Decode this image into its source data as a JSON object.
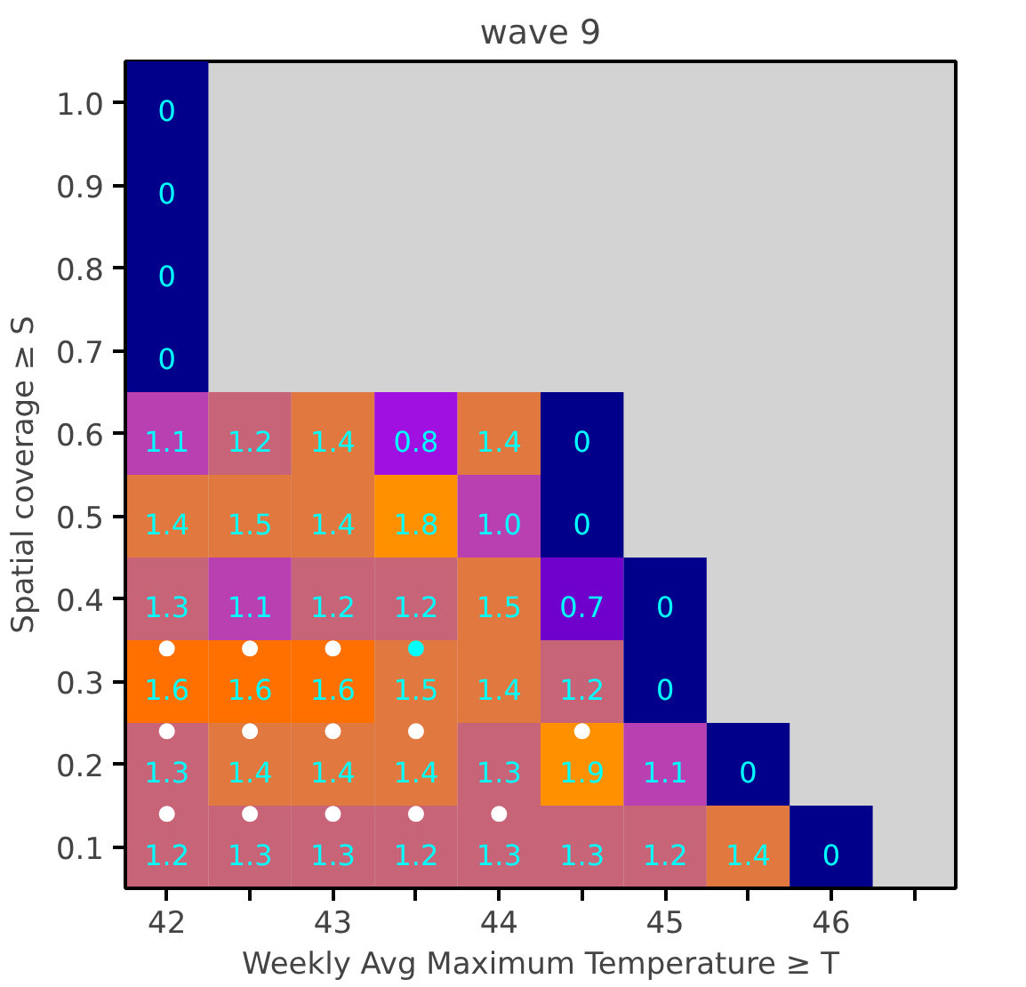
{
  "chart_data": {
    "type": "heatmap",
    "title": "wave 9",
    "xlabel": "Weekly Avg Maximum Temperature ≥ T",
    "ylabel": "Spatial coverage ≥ S",
    "x": [
      42,
      42.5,
      43,
      43.5,
      44,
      44.5,
      45,
      45.5,
      46
    ],
    "y": [
      1.0,
      0.9,
      0.8,
      0.7,
      0.6,
      0.5,
      0.4,
      0.3,
      0.2,
      0.1
    ],
    "cells": [
      [
        0,
        null,
        null,
        null,
        null,
        null,
        null,
        null,
        null
      ],
      [
        0,
        null,
        null,
        null,
        null,
        null,
        null,
        null,
        null
      ],
      [
        0,
        null,
        null,
        null,
        null,
        null,
        null,
        null,
        null
      ],
      [
        0,
        null,
        null,
        null,
        null,
        null,
        null,
        null,
        null
      ],
      [
        1.1,
        1.2,
        1.4,
        0.8,
        1.4,
        0,
        null,
        null,
        null
      ],
      [
        1.4,
        1.5,
        1.4,
        1.8,
        1.0,
        0,
        null,
        null,
        null
      ],
      [
        1.3,
        1.1,
        1.2,
        1.2,
        1.5,
        0.7,
        0,
        null,
        null
      ],
      [
        1.6,
        1.6,
        1.6,
        1.5,
        1.4,
        1.2,
        0,
        null,
        null
      ],
      [
        1.3,
        1.4,
        1.4,
        1.4,
        1.3,
        1.9,
        1.1,
        0,
        null
      ],
      [
        1.2,
        1.3,
        1.3,
        1.2,
        1.3,
        1.3,
        1.2,
        1.4,
        0
      ]
    ],
    "cell_labels": [
      [
        "0",
        null,
        null,
        null,
        null,
        null,
        null,
        null,
        null
      ],
      [
        "0",
        null,
        null,
        null,
        null,
        null,
        null,
        null,
        null
      ],
      [
        "0",
        null,
        null,
        null,
        null,
        null,
        null,
        null,
        null
      ],
      [
        "0",
        null,
        null,
        null,
        null,
        null,
        null,
        null,
        null
      ],
      [
        "1.1",
        "1.2",
        "1.4",
        "0.8",
        "1.4",
        "0",
        null,
        null,
        null
      ],
      [
        "1.4",
        "1.5",
        "1.4",
        "1.8",
        "1.0",
        "0",
        null,
        null,
        null
      ],
      [
        "1.3",
        "1.1",
        "1.2",
        "1.2",
        "1.5",
        "0.7",
        "0",
        null,
        null
      ],
      [
        "1.6",
        "1.6",
        "1.6",
        "1.5",
        "1.4",
        "1.2",
        "0",
        null,
        null
      ],
      [
        "1.3",
        "1.4",
        "1.4",
        "1.4",
        "1.3",
        "1.9",
        "1.1",
        "0",
        null
      ],
      [
        "1.2",
        "1.3",
        "1.3",
        "1.2",
        "1.3",
        "1.3",
        "1.2",
        "1.4",
        "0"
      ]
    ],
    "data_labels": true,
    "xlim": [
      41.75,
      46.75
    ],
    "ylim": [
      0.05,
      1.05
    ],
    "xticks": [
      42,
      {
        "value": 42.5,
        "label": null
      },
      43,
      {
        "value": 43.5,
        "label": null
      },
      44,
      {
        "value": 44.5,
        "label": null
      },
      45,
      {
        "value": 45.5,
        "label": null
      },
      46,
      {
        "value": 46.5,
        "label": null
      }
    ],
    "yticks": [
      {
        "value": 0.1,
        "label": "0.1"
      },
      {
        "value": 0.2,
        "label": "0.2"
      },
      {
        "value": 0.3,
        "label": "0.3"
      },
      {
        "value": 0.4,
        "label": "0.4"
      },
      {
        "value": 0.5,
        "label": "0.5"
      },
      {
        "value": 0.6,
        "label": "0.6"
      },
      {
        "value": 0.7,
        "label": "0.7"
      },
      {
        "value": 0.8,
        "label": "0.8"
      },
      {
        "value": 0.9,
        "label": "0.9"
      },
      {
        "value": 1.0,
        "label": "1.0"
      }
    ],
    "grid": false,
    "series": [
      {
        "type": "scatter",
        "x": [
          42,
          42.5,
          43,
          42,
          42.5,
          43,
          43.5,
          44.5,
          42,
          42.5,
          43,
          43.5,
          44
        ],
        "values": [
          0.34,
          0.34,
          0.34,
          0.24,
          0.24,
          0.24,
          0.24,
          0.24,
          0.14,
          0.14,
          0.14,
          0.14,
          0.14
        ],
        "value_labels": [
          null,
          null,
          null,
          null,
          null,
          null,
          null,
          null,
          null,
          null,
          null,
          null,
          null
        ],
        "color": "#ffffff"
      },
      {
        "type": "scatter",
        "x": [
          43.5
        ],
        "values": [
          0.34
        ],
        "value_labels": [
          null
        ],
        "color": "#00ffff"
      }
    ]
  }
}
